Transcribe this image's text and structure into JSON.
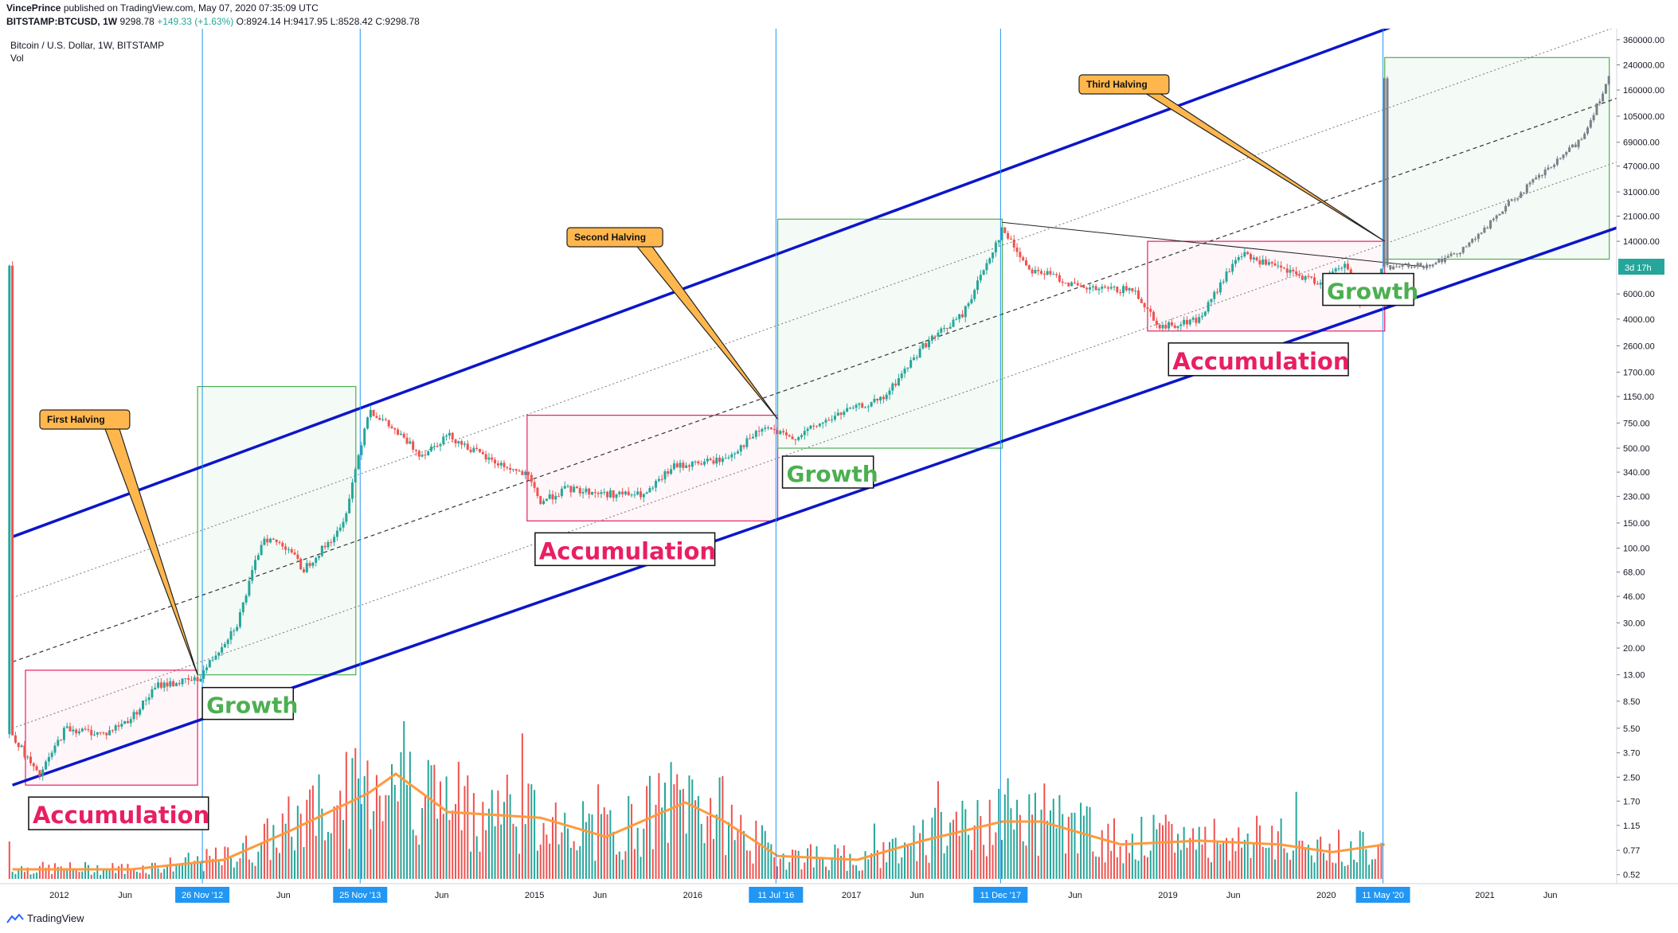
{
  "header": {
    "author": "VincePrince",
    "published_text": "published on TradingView.com, May 07, 2020 07:35:09 UTC",
    "symbol": "BITSTAMP:BTCUSD, 1W",
    "last": "9298.78",
    "change": "+149.33 (+1.63%)",
    "ohlc": "O:8924.14 H:9417.95 L:8528.42 C:9298.78"
  },
  "chart_data": {
    "type": "candlestick",
    "title": "Bitcoin / U.S. Dollar, 1W, BITSTAMP",
    "volume_label": "Vol",
    "y_scale": "log",
    "ylim": [
      0.45,
      430000
    ],
    "y_ticks": [
      "360000.00",
      "240000.00",
      "160000.00",
      "105000.00",
      "69000.00",
      "47000.00",
      "31000.00",
      "21000.00",
      "14000.00",
      "6000.00",
      "4000.00",
      "2600.00",
      "1700.00",
      "1150.00",
      "750.00",
      "500.00",
      "340.00",
      "230.00",
      "150.00",
      "100.00",
      "68.00",
      "46.00",
      "30.00",
      "20.00",
      "13.00",
      "8.50",
      "5.50",
      "3.70",
      "2.50",
      "1.70",
      "1.15",
      "0.77",
      "0.52"
    ],
    "x_range": [
      "2011-09-01",
      "2021-11-01"
    ],
    "x_ticks": [
      "2012",
      "Jun",
      "26 Nov '12",
      "Jun",
      "25 Nov '13",
      "Jun",
      "2015",
      "Jun",
      "2016",
      "11 Jul '16",
      "2017",
      "Jun",
      "11 Dec '17",
      "Jun",
      "2019",
      "Jun",
      "2020",
      "11 May '20",
      "2021",
      "Jun"
    ],
    "countdown_badge": "3d 17h",
    "price_path": [
      {
        "date": "2011-09",
        "price": 5
      },
      {
        "date": "2011-11",
        "price": 2.5
      },
      {
        "date": "2012-01",
        "price": 5.5
      },
      {
        "date": "2012-04",
        "price": 5
      },
      {
        "date": "2012-06",
        "price": 6.5
      },
      {
        "date": "2012-08",
        "price": 11
      },
      {
        "date": "2012-11",
        "price": 12
      },
      {
        "date": "2013-02",
        "price": 30
      },
      {
        "date": "2013-04",
        "price": 120
      },
      {
        "date": "2013-06",
        "price": 100
      },
      {
        "date": "2013-07",
        "price": 70
      },
      {
        "date": "2013-10",
        "price": 140
      },
      {
        "date": "2013-12",
        "price": 950
      },
      {
        "date": "2014-02",
        "price": 650
      },
      {
        "date": "2014-04",
        "price": 450
      },
      {
        "date": "2014-06",
        "price": 620
      },
      {
        "date": "2014-09",
        "price": 420
      },
      {
        "date": "2014-12",
        "price": 320
      },
      {
        "date": "2015-01",
        "price": 210
      },
      {
        "date": "2015-03",
        "price": 260
      },
      {
        "date": "2015-06",
        "price": 240
      },
      {
        "date": "2015-09",
        "price": 235
      },
      {
        "date": "2015-11",
        "price": 370
      },
      {
        "date": "2016-03",
        "price": 420
      },
      {
        "date": "2016-06",
        "price": 700
      },
      {
        "date": "2016-08",
        "price": 580
      },
      {
        "date": "2016-12",
        "price": 900
      },
      {
        "date": "2017-03",
        "price": 1100
      },
      {
        "date": "2017-06",
        "price": 2600
      },
      {
        "date": "2017-09",
        "price": 4300
      },
      {
        "date": "2017-12",
        "price": 17000
      },
      {
        "date": "2018-02",
        "price": 9000
      },
      {
        "date": "2018-04",
        "price": 8000
      },
      {
        "date": "2018-06",
        "price": 6500
      },
      {
        "date": "2018-10",
        "price": 6400
      },
      {
        "date": "2018-12",
        "price": 3500
      },
      {
        "date": "2019-03",
        "price": 4000
      },
      {
        "date": "2019-06",
        "price": 11500
      },
      {
        "date": "2019-09",
        "price": 9000
      },
      {
        "date": "2019-12",
        "price": 7200
      },
      {
        "date": "2020-02",
        "price": 9800
      },
      {
        "date": "2020-03",
        "price": 5000
      },
      {
        "date": "2020-05",
        "price": 9300
      }
    ],
    "projection_path": [
      {
        "date": "2020-05",
        "price": 9300
      },
      {
        "date": "2020-08",
        "price": 9500
      },
      {
        "date": "2020-10",
        "price": 11000
      },
      {
        "date": "2020-12",
        "price": 15000
      },
      {
        "date": "2021-02",
        "price": 24000
      },
      {
        "date": "2021-04",
        "price": 35000
      },
      {
        "date": "2021-06",
        "price": 50000
      },
      {
        "date": "2021-08",
        "price": 75000
      },
      {
        "date": "2021-10",
        "price": 200000
      }
    ],
    "volume_ma_path": [
      {
        "date": "2011-09",
        "v": 0.05
      },
      {
        "date": "2012-06",
        "v": 0.05
      },
      {
        "date": "2013-01",
        "v": 0.1
      },
      {
        "date": "2013-06",
        "v": 0.25
      },
      {
        "date": "2013-12",
        "v": 0.45
      },
      {
        "date": "2014-02",
        "v": 0.55
      },
      {
        "date": "2014-06",
        "v": 0.35
      },
      {
        "date": "2015-01",
        "v": 0.32
      },
      {
        "date": "2015-06",
        "v": 0.22
      },
      {
        "date": "2015-12",
        "v": 0.4
      },
      {
        "date": "2016-03",
        "v": 0.3
      },
      {
        "date": "2016-07",
        "v": 0.12
      },
      {
        "date": "2017-01",
        "v": 0.1
      },
      {
        "date": "2017-06",
        "v": 0.2
      },
      {
        "date": "2017-12",
        "v": 0.3
      },
      {
        "date": "2018-03",
        "v": 0.3
      },
      {
        "date": "2018-09",
        "v": 0.18
      },
      {
        "date": "2019-03",
        "v": 0.2
      },
      {
        "date": "2019-09",
        "v": 0.18
      },
      {
        "date": "2020-01",
        "v": 0.14
      },
      {
        "date": "2020-05",
        "v": 0.18
      }
    ],
    "channel_lines": [
      {
        "name": "channel-upper",
        "start": {
          "date": "2011-09",
          "price": 120
        },
        "end": {
          "date": "2020-06",
          "price": 460000
        },
        "style": "solid-blue-thick"
      },
      {
        "name": "channel-lower",
        "start": {
          "date": "2011-09",
          "price": 2.2
        },
        "end": {
          "date": "2021-11",
          "price": 18000
        },
        "style": "solid-blue-thick"
      },
      {
        "name": "channel-mid",
        "start": {
          "date": "2011-09",
          "price": 16
        },
        "end": {
          "date": "2021-11",
          "price": 145000
        },
        "style": "dashed"
      },
      {
        "name": "channel-q1",
        "start": {
          "date": "2011-09",
          "price": 5.5
        },
        "end": {
          "date": "2021-11",
          "price": 52000
        },
        "style": "dotted"
      },
      {
        "name": "channel-q3",
        "start": {
          "date": "2011-09",
          "price": 45
        },
        "end": {
          "date": "2021-11",
          "price": 460000
        },
        "style": "dotted"
      },
      {
        "name": "trendline-ath",
        "start": {
          "date": "2017-12",
          "price": 19000
        },
        "end": {
          "date": "2020-08",
          "price": 9300
        },
        "style": "thin-black"
      }
    ],
    "halving_lines": [
      {
        "date": "2012-11-26",
        "label": "26 Nov '12"
      },
      {
        "date": "2016-07-11",
        "label": "11 Jul '16"
      },
      {
        "date": "2020-05-11",
        "label": "11 May '20"
      }
    ],
    "cycle_top_lines": [
      {
        "date": "2013-11-25",
        "label": "25 Nov '13"
      },
      {
        "date": "2017-12-11",
        "label": "11 Dec '17"
      }
    ],
    "zones": [
      {
        "kind": "accumulation",
        "from": "2011-10",
        "to": "2012-11",
        "low": 2.2,
        "high": 14,
        "label": "Accumulation"
      },
      {
        "kind": "growth",
        "from": "2012-11",
        "to": "2013-11",
        "low": 13,
        "high": 1350,
        "label": "Growth"
      },
      {
        "kind": "accumulation",
        "from": "2014-12",
        "to": "2016-07",
        "low": 155,
        "high": 850,
        "label": "Accumulation"
      },
      {
        "kind": "growth",
        "from": "2016-07",
        "to": "2017-12",
        "low": 500,
        "high": 20000,
        "label": "Growth"
      },
      {
        "kind": "accumulation",
        "from": "2018-11",
        "to": "2020-05",
        "low": 3300,
        "high": 14000,
        "label": "Accumulation"
      },
      {
        "kind": "growth",
        "from": "2020-05",
        "to": "2021-10",
        "low": 10500,
        "high": 270000,
        "label": "Growth"
      }
    ],
    "callouts": [
      {
        "label": "First Halving",
        "target": {
          "date": "2012-11",
          "price": 13
        }
      },
      {
        "label": "Second Halving",
        "target": {
          "date": "2016-07",
          "price": 800
        }
      },
      {
        "label": "Third Halving",
        "target": {
          "date": "2020-05",
          "price": 14000
        }
      }
    ],
    "colors": {
      "up": "#26a69a",
      "down": "#ef5350",
      "projection": "#7a7f8a",
      "channel": "#0c16c9",
      "halving": "#2196f3",
      "growth": "#4caf50",
      "accumulation": "#e91e63",
      "callout": "#ffb74d",
      "ma": "#ff9a3c"
    }
  },
  "footer": {
    "brand": "TradingView"
  }
}
